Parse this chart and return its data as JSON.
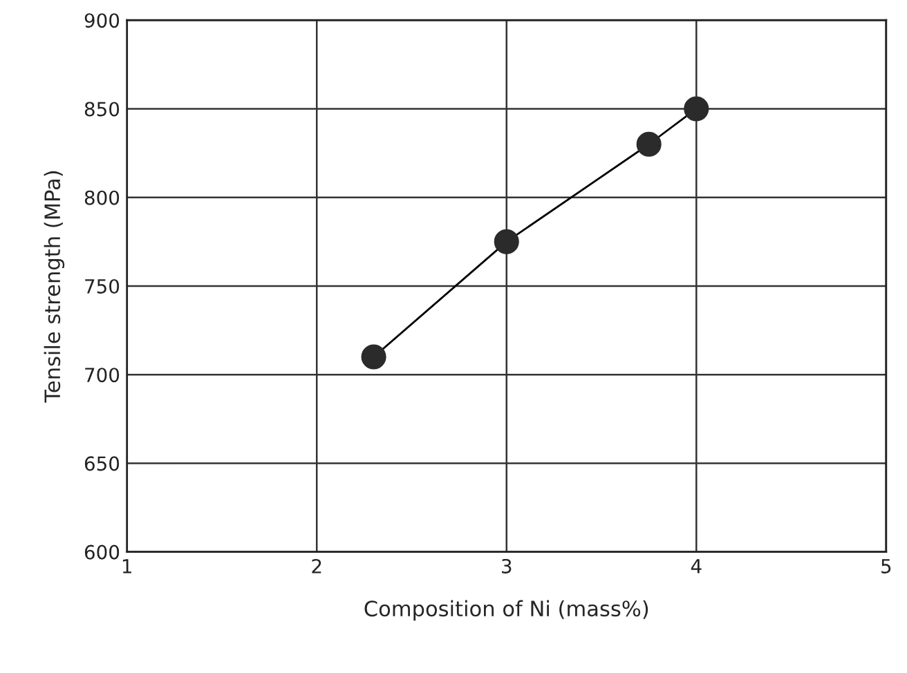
{
  "chart_data": {
    "type": "line",
    "xlabel": "Composition of Ni (mass%)",
    "ylabel": "Tensile strength (MPa)",
    "x": [
      2.3,
      3,
      3.75,
      4
    ],
    "series": [
      {
        "color": "#2b2b2b",
        "values": [
          710,
          775,
          830,
          850
        ]
      }
    ],
    "xlim": [
      1,
      5
    ],
    "xticks": [
      1,
      2,
      3,
      4,
      5
    ],
    "ylim": [
      600,
      900
    ],
    "yticks": [
      600,
      650,
      700,
      750,
      800,
      850,
      900
    ],
    "grid": true,
    "marker": "circle",
    "line_style": "solid"
  }
}
